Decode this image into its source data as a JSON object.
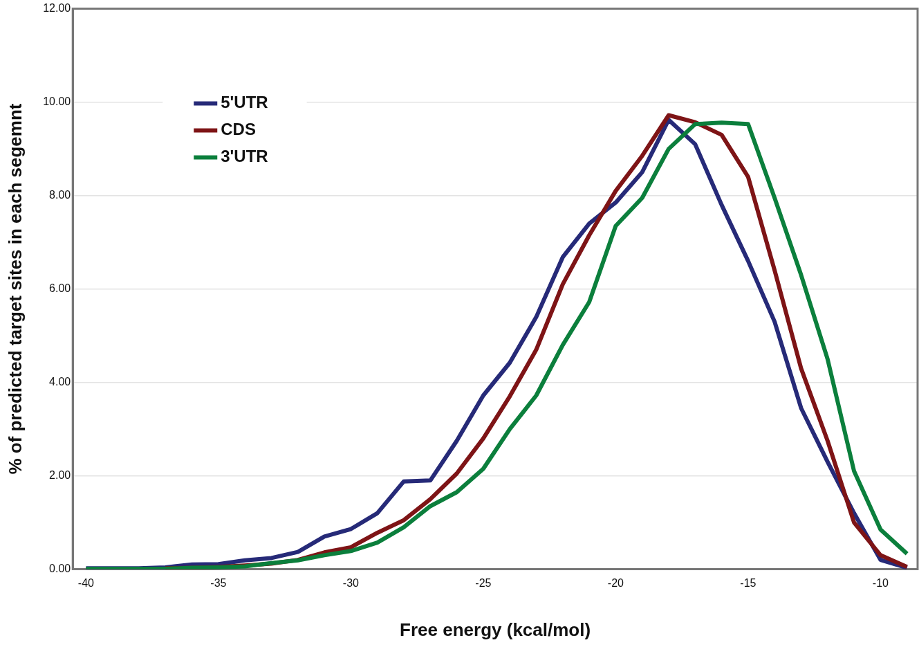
{
  "chart_data": {
    "type": "line",
    "xlabel": "Free energy (kcal/mol)",
    "ylabel": "% of predicted target sites in each segemnt",
    "x": [
      -40,
      -39,
      -38,
      -37,
      -36,
      -35,
      -34,
      -33,
      -32,
      -31,
      -30,
      -29,
      -28,
      -27,
      -26,
      -25,
      -24,
      -23,
      -22,
      -21,
      -20,
      -19,
      -18,
      -17,
      -16,
      -15,
      -14,
      -13,
      -12,
      -11,
      -10,
      -9
    ],
    "series": [
      {
        "name": "5'UTR",
        "color": "#262a78",
        "values": [
          0.02,
          0.02,
          0.02,
          0.04,
          0.1,
          0.11,
          0.19,
          0.24,
          0.37,
          0.7,
          0.86,
          1.2,
          1.88,
          1.9,
          2.75,
          3.72,
          4.42,
          5.4,
          6.68,
          7.4,
          7.85,
          8.5,
          9.62,
          9.1,
          7.8,
          6.6,
          5.3,
          3.45,
          2.3,
          1.2,
          0.2,
          0.03
        ]
      },
      {
        "name": "CDS",
        "color": "#7e1416",
        "values": [
          null,
          null,
          null,
          0.02,
          0.03,
          0.05,
          0.08,
          0.12,
          0.2,
          0.36,
          0.47,
          0.78,
          1.05,
          1.5,
          2.05,
          2.8,
          3.7,
          4.7,
          6.1,
          7.15,
          8.1,
          8.85,
          9.72,
          9.57,
          9.3,
          8.4,
          6.4,
          4.3,
          2.75,
          1.0,
          0.3,
          0.05
        ]
      },
      {
        "name": "3'UTR",
        "color": "#0b7f3c",
        "values": [
          0.01,
          0.01,
          0.01,
          0.01,
          0.03,
          0.04,
          0.06,
          0.13,
          0.19,
          0.3,
          0.39,
          0.57,
          0.9,
          1.35,
          1.65,
          2.15,
          3.0,
          3.72,
          4.8,
          5.72,
          7.35,
          7.95,
          9.0,
          9.53,
          9.56,
          9.53,
          7.95,
          6.3,
          4.5,
          2.1,
          0.85,
          0.33
        ]
      }
    ],
    "xlim": [
      -40.5,
      -8.6
    ],
    "xticks": [
      -40,
      -35,
      -30,
      -25,
      -20,
      -15,
      -10
    ],
    "ylim": [
      0,
      12
    ],
    "yticks": [
      {
        "value": 0,
        "label": "0.00"
      },
      {
        "value": 2,
        "label": "2.00"
      },
      {
        "value": 4,
        "label": "4.00"
      },
      {
        "value": 6,
        "label": "6.00"
      },
      {
        "value": 8,
        "label": "8.00"
      },
      {
        "value": 10,
        "label": "10.00"
      },
      {
        "value": 12,
        "label": "12.00"
      }
    ],
    "grid": "y",
    "legend": "top left",
    "marker": "none",
    "line_style": "solid"
  }
}
